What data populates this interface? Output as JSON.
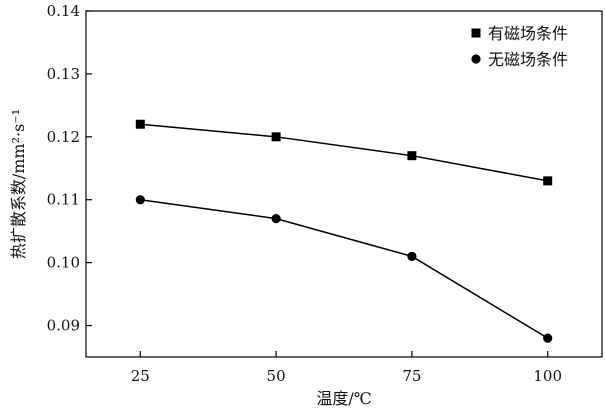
{
  "chart_data": {
    "type": "line",
    "title": "",
    "xlabel": "温度/℃",
    "ylabel": "热扩散系数/mm²·s⁻¹",
    "x": [
      25,
      50,
      75,
      100
    ],
    "xlim": [
      15,
      110
    ],
    "ylim": [
      0.085,
      0.14
    ],
    "xticks": [
      "25",
      "50",
      "75",
      "100"
    ],
    "yticks": [
      "0.09",
      "0.10",
      "0.11",
      "0.12",
      "0.13",
      "0.14"
    ],
    "grid": false,
    "legend_position": "top-right",
    "series": [
      {
        "name": "有磁场条件",
        "marker": "square",
        "color": "#000000",
        "values": [
          0.122,
          0.12,
          0.117,
          0.113
        ]
      },
      {
        "name": "无磁场条件",
        "marker": "circle",
        "color": "#000000",
        "values": [
          0.11,
          0.107,
          0.101,
          0.088
        ]
      }
    ]
  }
}
